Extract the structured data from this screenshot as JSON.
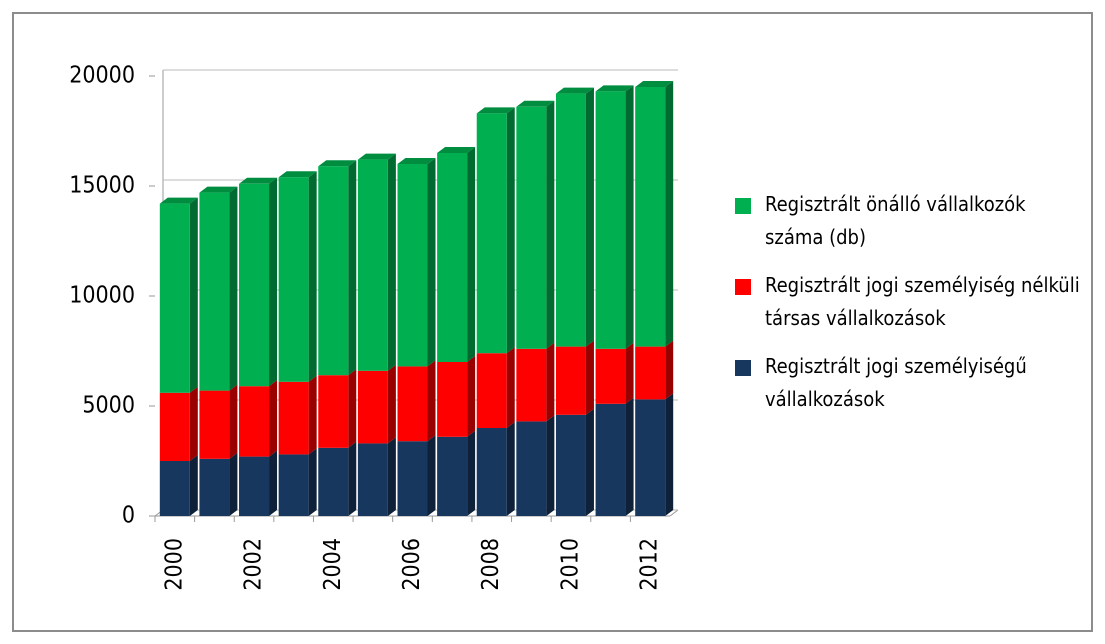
{
  "chart_data": {
    "type": "bar",
    "stacked": true,
    "categories": [
      "2000",
      null,
      "2002",
      null,
      "2004",
      null,
      "2006",
      null,
      "2008",
      null,
      "2010",
      null,
      "2012"
    ],
    "series": [
      {
        "name": "Regisztrált jogi személyiségű vállalkozások",
        "color": "#17375e",
        "values": [
          2500,
          2600,
          2700,
          2800,
          3100,
          3300,
          3400,
          3600,
          4000,
          4300,
          4600,
          5100,
          5300
        ]
      },
      {
        "name": "Regisztrált jogi személyiség nélküli társas vállalkozások",
        "color": "#ff0000",
        "values": [
          3100,
          3100,
          3200,
          3300,
          3300,
          3300,
          3400,
          3400,
          3400,
          3300,
          3100,
          2500,
          2400
        ]
      },
      {
        "name": "Regisztrált önálló vállalkozók száma (db)",
        "color": "#00b050",
        "values": [
          8600,
          9000,
          9200,
          9300,
          9500,
          9600,
          9200,
          9500,
          10900,
          11000,
          11500,
          11700,
          11800
        ]
      }
    ],
    "ylim": [
      0,
      20000
    ],
    "yticks": [
      0,
      5000,
      10000,
      15000,
      20000
    ],
    "grid": true
  }
}
